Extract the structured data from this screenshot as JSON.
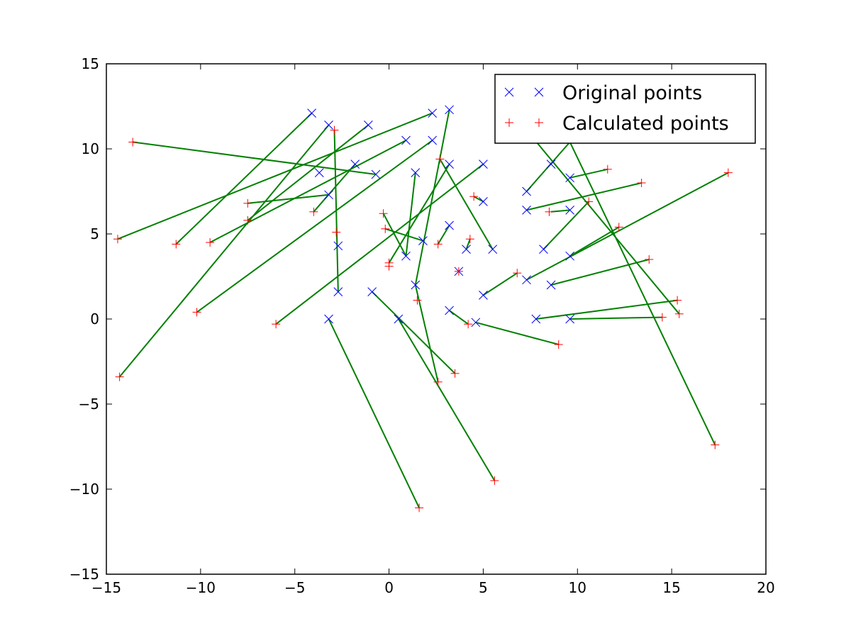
{
  "chart_data": {
    "type": "scatter",
    "title": "",
    "xlabel": "",
    "ylabel": "",
    "xlim": [
      -15,
      20
    ],
    "ylim": [
      -15,
      15
    ],
    "xticks": [
      -15,
      -10,
      -5,
      0,
      5,
      10,
      15,
      20
    ],
    "yticks": [
      -15,
      -10,
      -5,
      0,
      5,
      10,
      15
    ],
    "xtick_labels": [
      "−15",
      "−10",
      "−5",
      "0",
      "5",
      "10",
      "15",
      "20"
    ],
    "ytick_labels": [
      "−15",
      "−10",
      "−5",
      "0",
      "5",
      "10",
      "15"
    ],
    "grid": false,
    "legend_position": "top-right",
    "series": [
      {
        "name": "Original points",
        "marker": "x",
        "color": "#0000ff",
        "points": [
          [
            -4.1,
            12.1
          ],
          [
            -3.2,
            11.4
          ],
          [
            -1.1,
            11.4
          ],
          [
            2.3,
            12.1
          ],
          [
            3.2,
            12.3
          ],
          [
            0.9,
            10.5
          ],
          [
            2.3,
            10.5
          ],
          [
            -3.7,
            8.6
          ],
          [
            -1.8,
            9.1
          ],
          [
            -0.7,
            8.5
          ],
          [
            1.4,
            8.6
          ],
          [
            3.2,
            9.1
          ],
          [
            5.0,
            9.1
          ],
          [
            -3.2,
            7.3
          ],
          [
            5.0,
            6.9
          ],
          [
            3.2,
            5.5
          ],
          [
            -2.7,
            4.3
          ],
          [
            1.8,
            4.6
          ],
          [
            0.9,
            3.7
          ],
          [
            4.1,
            4.1
          ],
          [
            5.5,
            4.1
          ],
          [
            7.3,
            7.5
          ],
          [
            8.6,
            9.1
          ],
          [
            9.6,
            8.3
          ],
          [
            9.6,
            6.4
          ],
          [
            7.3,
            6.4
          ],
          [
            8.2,
            4.1
          ],
          [
            9.6,
            3.7
          ],
          [
            7.3,
            2.3
          ],
          [
            8.6,
            2.0
          ],
          [
            -2.7,
            1.6
          ],
          [
            -0.9,
            1.6
          ],
          [
            1.4,
            2.0
          ],
          [
            5.0,
            1.4
          ],
          [
            3.7,
            2.8
          ],
          [
            -3.2,
            0.0
          ],
          [
            0.5,
            0.0
          ],
          [
            3.2,
            0.5
          ],
          [
            4.6,
            -0.2
          ],
          [
            7.8,
            0.0
          ],
          [
            9.6,
            0.0
          ]
        ]
      },
      {
        "name": "Calculated points",
        "marker": "+",
        "color": "#ff0000",
        "points": [
          [
            -13.6,
            10.4
          ],
          [
            -14.4,
            4.7
          ],
          [
            -11.3,
            4.4
          ],
          [
            -9.5,
            4.5
          ],
          [
            -10.2,
            0.4
          ],
          [
            -14.3,
            -3.4
          ],
          [
            -7.5,
            6.8
          ],
          [
            -7.5,
            5.8
          ],
          [
            -4.0,
            6.3
          ],
          [
            -2.9,
            11.1
          ],
          [
            -2.8,
            5.1
          ],
          [
            -6.0,
            -0.3
          ],
          [
            -0.3,
            6.2
          ],
          [
            -0.2,
            5.3
          ],
          [
            0.0,
            3.3
          ],
          [
            0.0,
            3.1
          ],
          [
            2.7,
            9.4
          ],
          [
            2.6,
            4.4
          ],
          [
            1.5,
            1.1
          ],
          [
            4.3,
            4.7
          ],
          [
            4.5,
            7.2
          ],
          [
            4.2,
            -0.3
          ],
          [
            3.5,
            -3.2
          ],
          [
            2.6,
            -3.7
          ],
          [
            1.6,
            -11.1
          ],
          [
            5.6,
            -9.5
          ],
          [
            6.8,
            2.7
          ],
          [
            3.7,
            2.8
          ],
          [
            8.5,
            6.3
          ],
          [
            10.6,
            6.9
          ],
          [
            11.6,
            8.8
          ],
          [
            13.4,
            8.0
          ],
          [
            12.2,
            5.4
          ],
          [
            13.8,
            3.5
          ],
          [
            15.3,
            1.1
          ],
          [
            15.4,
            0.3
          ],
          [
            14.5,
            0.1
          ],
          [
            9.0,
            -1.5
          ],
          [
            18.0,
            8.6
          ],
          [
            17.3,
            -7.4
          ]
        ]
      }
    ],
    "connections": {
      "color": "#008000",
      "segments": [
        [
          [
            -3.2,
            7.3
          ],
          [
            -7.5,
            6.8
          ]
        ],
        [
          [
            -4.1,
            12.1
          ],
          [
            -11.3,
            4.4
          ]
        ],
        [
          [
            -3.2,
            11.4
          ],
          [
            -14.3,
            -3.4
          ]
        ],
        [
          [
            2.3,
            12.1
          ],
          [
            -14.4,
            4.7
          ]
        ],
        [
          [
            0.9,
            10.5
          ],
          [
            -9.5,
            4.5
          ]
        ],
        [
          [
            2.3,
            10.5
          ],
          [
            -10.2,
            0.4
          ]
        ],
        [
          [
            -1.1,
            11.4
          ],
          [
            -7.5,
            5.8
          ]
        ],
        [
          [
            -1.8,
            9.1
          ],
          [
            -4.0,
            6.3
          ]
        ],
        [
          [
            -0.7,
            8.5
          ],
          [
            -13.6,
            10.4
          ]
        ],
        [
          [
            -2.9,
            11.1
          ],
          [
            -2.7,
            1.6
          ]
        ],
        [
          [
            3.2,
            12.3
          ],
          [
            1.4,
            2.0
          ]
        ],
        [
          [
            1.4,
            8.6
          ],
          [
            0.9,
            3.7
          ]
        ],
        [
          [
            5.0,
            9.1
          ],
          [
            -6.0,
            -0.3
          ]
        ],
        [
          [
            3.2,
            9.1
          ],
          [
            0.0,
            3.3
          ]
        ],
        [
          [
            -0.3,
            6.2
          ],
          [
            0.9,
            3.7
          ]
        ],
        [
          [
            -0.2,
            5.3
          ],
          [
            1.8,
            4.6
          ]
        ],
        [
          [
            2.7,
            9.4
          ],
          [
            5.5,
            4.1
          ]
        ],
        [
          [
            4.5,
            7.2
          ],
          [
            5.0,
            6.9
          ]
        ],
        [
          [
            3.2,
            5.5
          ],
          [
            2.6,
            4.4
          ]
        ],
        [
          [
            4.1,
            4.1
          ],
          [
            4.3,
            4.7
          ]
        ],
        [
          [
            1.4,
            2.0
          ],
          [
            2.6,
            -3.7
          ]
        ],
        [
          [
            -0.9,
            1.6
          ],
          [
            3.5,
            -3.2
          ]
        ],
        [
          [
            0.5,
            0.0
          ],
          [
            5.6,
            -9.5
          ]
        ],
        [
          [
            -3.2,
            0.0
          ],
          [
            1.6,
            -11.1
          ]
        ],
        [
          [
            3.2,
            0.5
          ],
          [
            4.2,
            -0.3
          ]
        ],
        [
          [
            4.6,
            -0.2
          ],
          [
            9.0,
            -1.5
          ]
        ],
        [
          [
            5.0,
            1.4
          ],
          [
            6.8,
            2.7
          ]
        ],
        [
          [
            7.3,
            7.5
          ],
          [
            9.6,
            10.4
          ]
        ],
        [
          [
            9.6,
            8.3
          ],
          [
            11.6,
            8.8
          ]
        ],
        [
          [
            7.3,
            6.4
          ],
          [
            13.4,
            8.0
          ]
        ],
        [
          [
            8.6,
            6.3
          ],
          [
            9.6,
            6.4
          ]
        ],
        [
          [
            8.2,
            4.1
          ],
          [
            10.6,
            6.9
          ]
        ],
        [
          [
            9.6,
            3.7
          ],
          [
            12.2,
            5.4
          ]
        ],
        [
          [
            7.3,
            2.3
          ],
          [
            18.0,
            8.6
          ]
        ],
        [
          [
            8.6,
            2.0
          ],
          [
            13.8,
            3.5
          ]
        ],
        [
          [
            7.8,
            0.0
          ],
          [
            15.3,
            1.1
          ]
        ],
        [
          [
            9.6,
            0.0
          ],
          [
            14.5,
            0.1
          ]
        ],
        [
          [
            7.6,
            10.7
          ],
          [
            15.4,
            0.3
          ]
        ],
        [
          [
            9.6,
            10.4
          ],
          [
            17.3,
            -7.4
          ]
        ]
      ]
    }
  }
}
